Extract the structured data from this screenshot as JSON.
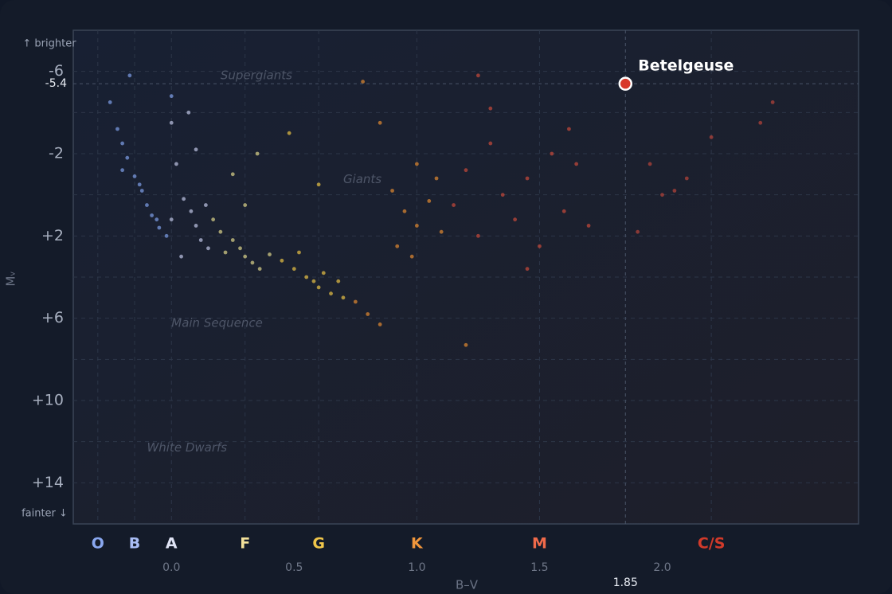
{
  "chart_data": {
    "type": "scatter",
    "xlabel": "B–V",
    "ylabel": "Mᵥ",
    "y_top_note": "↑ brighter",
    "y_bottom_note": "fainter ↓",
    "xlim": [
      -0.4,
      2.8
    ],
    "ylim": [
      16,
      -8
    ],
    "xticks": [
      {
        "value": 0,
        "label": "0.0"
      },
      0.5,
      {
        "value": 1,
        "label": "1.0"
      },
      1.5,
      {
        "value": 2,
        "label": "2.0"
      }
    ],
    "yticks": [
      -6,
      -2,
      {
        "value": 2,
        "label": "+2"
      },
      {
        "value": 6,
        "label": "+6"
      },
      {
        "value": 10,
        "label": "+10"
      },
      {
        "value": 14,
        "label": "+14"
      }
    ],
    "ygrid": [
      -6,
      -4,
      -2,
      0,
      2,
      4,
      6,
      8,
      10,
      12,
      14
    ],
    "grid": true,
    "spectral_classes": [
      {
        "label": "O",
        "bv": -0.3,
        "color": "#8aa8f0"
      },
      {
        "label": "B",
        "bv": -0.15,
        "color": "#a9bdf5"
      },
      {
        "label": "A",
        "bv": 0.0,
        "color": "#e0e4f5"
      },
      {
        "label": "F",
        "bv": 0.3,
        "color": "#f3e19a"
      },
      {
        "label": "G",
        "bv": 0.6,
        "color": "#f0c64a"
      },
      {
        "label": "K",
        "bv": 1.0,
        "color": "#f0963c"
      },
      {
        "label": "M",
        "bv": 1.5,
        "color": "#f06a4a"
      },
      {
        "label": "C/S",
        "bv": 2.2,
        "color": "#d23a2a"
      }
    ],
    "annotations": [
      {
        "text": "Supergiants",
        "x": 0.2,
        "y": -5.8
      },
      {
        "text": "Giants",
        "x": 0.7,
        "y": -0.75
      },
      {
        "text": "Main Sequence",
        "x": 0.0,
        "y": 6.25
      },
      {
        "text": "White Dwarfs",
        "x": -0.1,
        "y": 12.3
      }
    ],
    "highlight": {
      "name": "Betelgeuse",
      "x": 1.85,
      "y": -5.4,
      "color": "#d8392b"
    },
    "series": [
      {
        "color": "#7f9fe8",
        "x": [
          -0.25,
          -0.22,
          -0.2,
          -0.18,
          -0.15,
          -0.12,
          -0.1,
          -0.08,
          -0.05,
          -0.02,
          0.0,
          -0.17,
          -0.13,
          -0.06,
          -0.2
        ],
        "y": [
          -4.5,
          -3.2,
          -2.5,
          -1.8,
          -0.9,
          -0.2,
          0.5,
          1.0,
          1.6,
          2.0,
          -4.8,
          -5.8,
          -0.5,
          1.2,
          -1.2
        ]
      },
      {
        "color": "#c0c6e6",
        "x": [
          0.0,
          0.02,
          0.05,
          0.08,
          0.1,
          0.12,
          0.15,
          0.04,
          0.0,
          0.1,
          0.07,
          0.14
        ],
        "y": [
          -3.5,
          -1.5,
          0.2,
          0.8,
          1.5,
          2.2,
          2.6,
          3.0,
          1.2,
          -2.2,
          -4.0,
          0.5
        ]
      },
      {
        "color": "#ddd48a",
        "x": [
          0.17,
          0.2,
          0.25,
          0.28,
          0.3,
          0.33,
          0.36,
          0.25,
          0.3,
          0.22,
          0.35,
          0.4
        ],
        "y": [
          1.2,
          1.8,
          2.2,
          2.6,
          3.0,
          3.3,
          3.6,
          -1.0,
          0.5,
          2.8,
          -2.0,
          2.9
        ]
      },
      {
        "color": "#e8c245",
        "x": [
          0.45,
          0.5,
          0.55,
          0.58,
          0.6,
          0.62,
          0.65,
          0.52,
          0.68,
          0.6,
          0.48,
          0.7
        ],
        "y": [
          3.2,
          3.6,
          4.0,
          4.2,
          4.5,
          3.8,
          4.8,
          2.8,
          4.2,
          -0.5,
          -3.0,
          5.0
        ]
      },
      {
        "color": "#e38a30",
        "x": [
          0.75,
          0.8,
          0.85,
          0.9,
          0.95,
          1.0,
          1.05,
          1.1,
          1.0,
          0.92,
          1.08,
          0.98,
          0.85,
          1.2,
          0.78
        ],
        "y": [
          5.2,
          5.8,
          6.3,
          -0.2,
          0.8,
          1.5,
          0.3,
          1.8,
          -1.5,
          2.5,
          -0.8,
          3.0,
          -3.5,
          7.3,
          -5.5
        ]
      },
      {
        "color": "#c94a3a",
        "x": [
          1.15,
          1.2,
          1.25,
          1.3,
          1.35,
          1.4,
          1.45,
          1.5,
          1.55,
          1.6,
          1.65,
          1.7,
          1.3,
          1.45,
          1.62,
          1.25
        ],
        "y": [
          0.5,
          -1.2,
          2.0,
          -2.5,
          0.0,
          1.2,
          -0.8,
          2.5,
          -2.0,
          0.8,
          -1.5,
          1.5,
          -4.2,
          3.6,
          -3.2,
          -5.8
        ]
      },
      {
        "color": "#b8443a",
        "x": [
          1.9,
          2.0,
          2.05,
          2.1,
          2.2,
          2.4,
          2.45,
          1.95
        ],
        "y": [
          1.8,
          0.0,
          -0.2,
          -0.8,
          -2.8,
          -3.5,
          -4.5,
          -1.5
        ]
      }
    ]
  }
}
